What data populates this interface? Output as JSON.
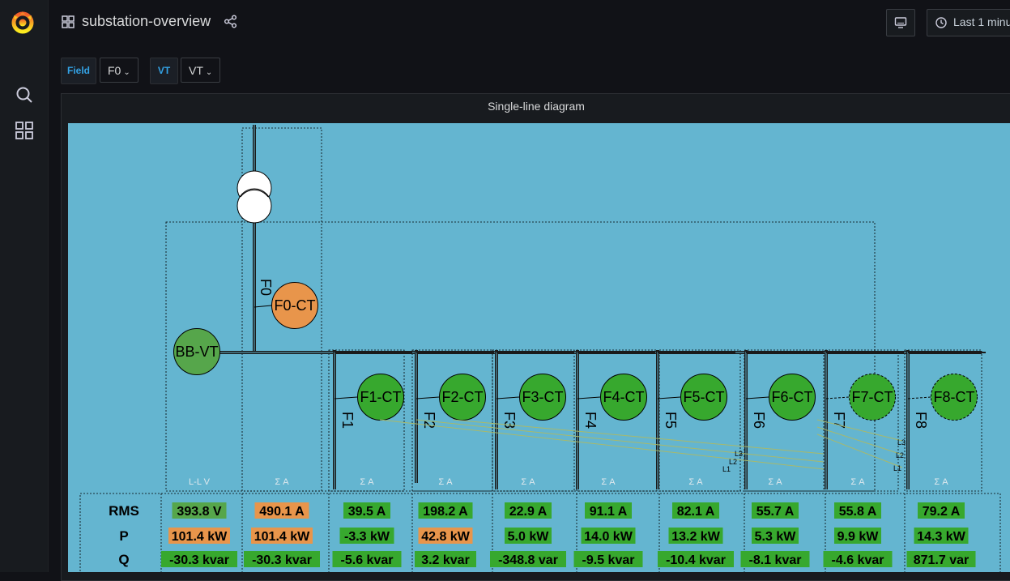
{
  "header": {
    "title": "substation-overview",
    "time_range": "Last 1 minu"
  },
  "variables": [
    {
      "label": "Field",
      "value": "F0"
    },
    {
      "label": "VT",
      "value": "VT"
    }
  ],
  "panel": {
    "title": "Single-line diagram"
  },
  "diagram": {
    "row_labels": [
      "RMS",
      "P",
      "Q"
    ],
    "transformer_label": "F0",
    "nodes": {
      "bb_vt": "BB-VT",
      "f0_ct": "F0-CT"
    },
    "columns": [
      {
        "header": "L-L V",
        "rms": "393.8 V",
        "p": "101.4 kW",
        "q": "-30.3 kvar",
        "rms_color": "#56a64b",
        "p_color": "#e8954b",
        "q_color": "#37a82e"
      },
      {
        "header": "Σ A",
        "rms": "490.1 A",
        "p": "101.4 kW",
        "q": "-30.3 kvar",
        "rms_color": "#e8954b",
        "p_color": "#e8954b",
        "q_color": "#37a82e"
      },
      {
        "header": "Σ A",
        "rms": "39.5 A",
        "p": "-3.3 kW",
        "q": "-5.6 kvar",
        "rms_color": "#37a82e",
        "p_color": "#37a82e",
        "q_color": "#37a82e"
      },
      {
        "header": "Σ A",
        "rms": "198.2 A",
        "p": "42.8 kW",
        "q": "3.2 kvar",
        "rms_color": "#37a82e",
        "p_color": "#e8954b",
        "q_color": "#37a82e"
      },
      {
        "header": "Σ A",
        "rms": "22.9 A",
        "p": "5.0 kW",
        "q": "-348.8 var",
        "rms_color": "#37a82e",
        "p_color": "#37a82e",
        "q_color": "#37a82e"
      },
      {
        "header": "Σ A",
        "rms": "91.1 A",
        "p": "14.0 kW",
        "q": "-9.5 kvar",
        "rms_color": "#37a82e",
        "p_color": "#37a82e",
        "q_color": "#37a82e"
      },
      {
        "header": "Σ A",
        "rms": "82.1 A",
        "p": "13.2 kW",
        "q": "-10.4 kvar",
        "rms_color": "#37a82e",
        "p_color": "#37a82e",
        "q_color": "#37a82e"
      },
      {
        "header": "Σ A",
        "rms": "55.7 A",
        "p": "5.3 kW",
        "q": "-8.1 kvar",
        "rms_color": "#37a82e",
        "p_color": "#37a82e",
        "q_color": "#37a82e"
      },
      {
        "header": "Σ A",
        "rms": "55.8 A",
        "p": "9.9 kW",
        "q": "-4.6 kvar",
        "rms_color": "#37a82e",
        "p_color": "#37a82e",
        "q_color": "#37a82e"
      },
      {
        "header": "Σ A",
        "rms": "79.2 A",
        "p": "14.3 kW",
        "q": "871.7 var",
        "rms_color": "#37a82e",
        "p_color": "#37a82e",
        "q_color": "#37a82e"
      }
    ],
    "feeders": [
      {
        "name": "F1",
        "ct": "F1-CT",
        "dashed": false
      },
      {
        "name": "F2",
        "ct": "F2-CT",
        "dashed": false
      },
      {
        "name": "F3",
        "ct": "F3-CT",
        "dashed": false
      },
      {
        "name": "F4",
        "ct": "F4-CT",
        "dashed": false
      },
      {
        "name": "F5",
        "ct": "F5-CT",
        "dashed": false
      },
      {
        "name": "F6",
        "ct": "F6-CT",
        "dashed": false
      },
      {
        "name": "F7",
        "ct": "F7-CT",
        "dashed": true
      },
      {
        "name": "F8",
        "ct": "F8-CT",
        "dashed": true
      }
    ],
    "phase_labels_f6": [
      "L3",
      "L2",
      "L1"
    ],
    "phase_labels_f8": [
      "L3",
      "L2",
      "L1"
    ]
  },
  "colors": {
    "diagram_bg": "#64b5d0",
    "green": "#37a82e",
    "orange": "#e8954b",
    "bb_vt_green": "#56a64b",
    "accent": "#33a2e5"
  },
  "icons": [
    "grafana-logo-icon",
    "search-icon",
    "dashboards-icon",
    "dashboard-grid-icon",
    "share-icon",
    "tv-mode-icon",
    "clock-icon",
    "chevron-down-icon"
  ]
}
